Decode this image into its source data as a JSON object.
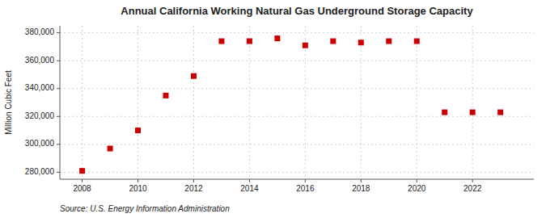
{
  "chart_data": {
    "type": "scatter",
    "title": "Annual California Working Natural Gas Underground Storage Capacity",
    "y_label": "Million Cubic Feet",
    "annotations": [
      "Source: U.S. Energy Information Administration"
    ],
    "x": [
      2008,
      2009,
      2010,
      2011,
      2012,
      2013,
      2014,
      2015,
      2016,
      2017,
      2018,
      2019,
      2020,
      2021,
      2022,
      2023
    ],
    "values": [
      281000,
      297000,
      310000,
      335000,
      349000,
      374000,
      374000,
      376000,
      371000,
      374000,
      373000,
      374000,
      374000,
      323000,
      323000,
      323000
    ],
    "color": "#cc0000",
    "marker": "square",
    "xlim": [
      2007.2,
      2024.2
    ],
    "xticks": [
      2008,
      2010,
      2012,
      2014,
      2016,
      2018,
      2020,
      2022
    ],
    "ylim": [
      275000,
      385000
    ],
    "yticks": [
      {
        "value": 280000,
        "label": "280,000"
      },
      {
        "value": 300000,
        "label": "300,000"
      },
      {
        "value": 320000,
        "label": "320,000"
      },
      {
        "value": 340000,
        "label": "340,000"
      },
      {
        "value": 360000,
        "label": "360,000"
      },
      {
        "value": 380000,
        "label": "380,000"
      }
    ],
    "grid": true
  }
}
